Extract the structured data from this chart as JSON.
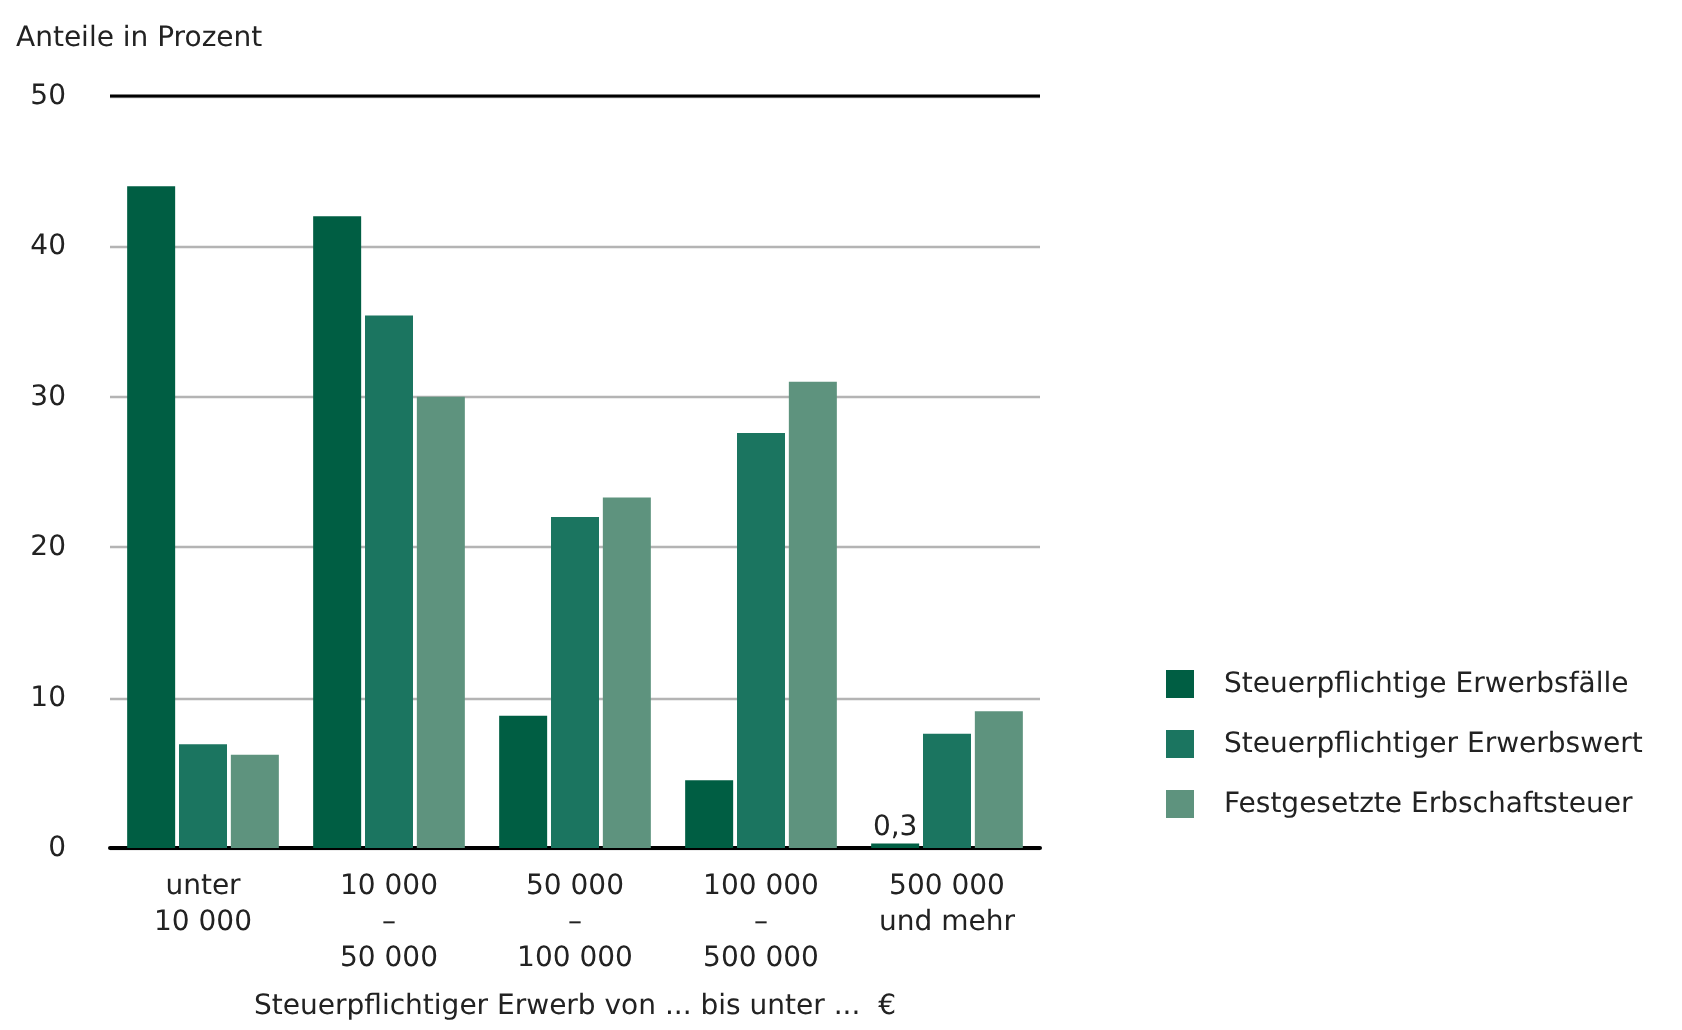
{
  "chart_data": {
    "type": "bar",
    "ylabel": "Anteile in Prozent",
    "xlabel": "Steuerpflichtiger Erwerb von ... bis unter ...  €",
    "categories": [
      "unter\n10 000",
      "10 000\n–\n50 000",
      "50 000\n–\n100 000",
      "100 000\n–\n500 000",
      "500 000\nund mehr"
    ],
    "series": [
      {
        "name": "Steuerpflichtige Erwerbsfälle",
        "color": "#005e43",
        "values": [
          44.0,
          42.0,
          8.8,
          4.5,
          0.3
        ],
        "value_labels": [
          null,
          null,
          null,
          null,
          "0,3"
        ]
      },
      {
        "name": "Steuerpflichtiger Erwerbswert",
        "color": "#1b7560",
        "values": [
          6.9,
          35.4,
          22.0,
          27.6,
          7.6
        ]
      },
      {
        "name": "Festgesetzte Erbschaftsteuer",
        "color": "#5e937e",
        "values": [
          6.2,
          30.0,
          23.3,
          31.0,
          9.1
        ]
      }
    ],
    "ylim": [
      0,
      50
    ],
    "yticks": [
      0,
      10,
      20,
      30,
      40,
      50
    ],
    "grid": "y",
    "legend": "right"
  }
}
